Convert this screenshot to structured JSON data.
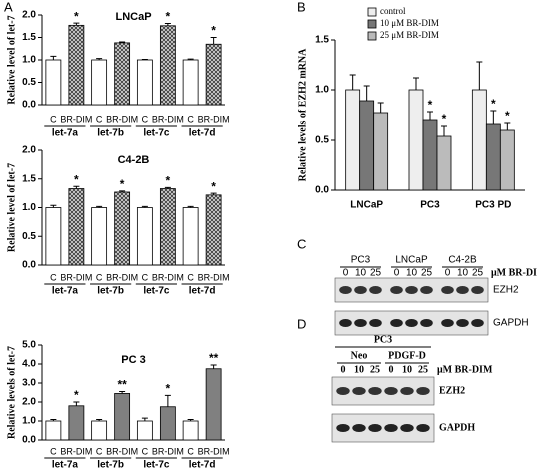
{
  "chart_data": [
    {
      "type": "bar",
      "panel": "A",
      "title": "LNCaP",
      "ylabel": "Relative level of let-7",
      "categories": [
        "let-7a",
        "let-7b",
        "let-7c",
        "let-7d"
      ],
      "series": [
        {
          "name": "C",
          "color": "#ffffff",
          "values": [
            1.0,
            1.0,
            1.0,
            1.0
          ],
          "errors": [
            0.08,
            0.03,
            0.01,
            0.02
          ],
          "annotations": [
            null,
            null,
            null,
            null
          ]
        },
        {
          "name": "BR-DIM",
          "color": "#999999",
          "pattern": "crosshatch",
          "values": [
            1.77,
            1.38,
            1.76,
            1.35
          ],
          "errors": [
            0.05,
            0.02,
            0.05,
            0.15
          ],
          "annotations": [
            "*",
            null,
            "*",
            "*"
          ]
        }
      ],
      "ylim": [
        0,
        2
      ],
      "yticks": [
        {
          "value": 0,
          "label": "0.0"
        },
        {
          "value": 0.5,
          "label": "0.5"
        },
        {
          "value": 1,
          "label": "1.0"
        },
        {
          "value": 1.5,
          "label": "1.5"
        },
        {
          "value": 2,
          "label": "2.0"
        }
      ]
    },
    {
      "type": "bar",
      "title": "C4-2B",
      "ylabel": "Relative level of let-7",
      "categories": [
        "let-7a",
        "let-7b",
        "let-7c",
        "let-7d"
      ],
      "series": [
        {
          "name": "C",
          "color": "#ffffff",
          "values": [
            1.0,
            1.0,
            1.0,
            1.0
          ],
          "errors": [
            0.04,
            0.02,
            0.02,
            0.02
          ],
          "annotations": [
            null,
            null,
            null,
            null
          ]
        },
        {
          "name": "BR-DIM",
          "color": "#999999",
          "pattern": "crosshatch",
          "values": [
            1.33,
            1.27,
            1.33,
            1.22
          ],
          "errors": [
            0.04,
            0.02,
            0.02,
            0.03
          ],
          "annotations": [
            "*",
            "*",
            "*",
            "*"
          ]
        }
      ],
      "ylim": [
        0,
        2
      ],
      "yticks": [
        {
          "value": 0,
          "label": "0.0"
        },
        {
          "value": 0.5,
          "label": "0.5"
        },
        {
          "value": 1,
          "label": "1.0"
        },
        {
          "value": 1.5,
          "label": "1.5"
        },
        {
          "value": 2,
          "label": "2.0"
        }
      ]
    },
    {
      "type": "bar",
      "title": "PC 3",
      "ylabel": "Relative levels of let-7",
      "categories": [
        "let-7a",
        "let-7b",
        "let-7c",
        "let-7d"
      ],
      "series": [
        {
          "name": "C",
          "color": "#ffffff",
          "values": [
            1.0,
            1.0,
            1.0,
            1.0
          ],
          "errors": [
            0.08,
            0.08,
            0.15,
            0.08
          ],
          "annotations": [
            null,
            null,
            null,
            null
          ]
        },
        {
          "name": "BR-DIM",
          "color": "#808080",
          "values": [
            1.8,
            2.45,
            1.75,
            3.75
          ],
          "errors": [
            0.2,
            0.1,
            0.6,
            0.2
          ],
          "annotations": [
            "*",
            "**",
            "*",
            "**"
          ]
        }
      ],
      "ylim": [
        0,
        5
      ],
      "yticks": [
        {
          "value": 0,
          "label": "0.0"
        },
        {
          "value": 1,
          "label": "1.0"
        },
        {
          "value": 2,
          "label": "2.0"
        },
        {
          "value": 3,
          "label": "3.0"
        },
        {
          "value": 4,
          "label": "4.0"
        },
        {
          "value": 5,
          "label": "5.0"
        }
      ]
    },
    {
      "type": "bar",
      "panel": "B",
      "ylabel": "Relative levels of EZH2 mRNA",
      "legend": "upper left",
      "categories": [
        "LNCaP",
        "PC3",
        "PC3 PD"
      ],
      "series": [
        {
          "name": "control",
          "color": "#eeeeee",
          "values": [
            1.0,
            1.0,
            1.0
          ],
          "errors": [
            0.15,
            0.12,
            0.28
          ],
          "annotations": [
            null,
            null,
            null
          ]
        },
        {
          "name": "10 μM BR-DIM",
          "color": "#777777",
          "values": [
            0.89,
            0.7,
            0.66
          ],
          "errors": [
            0.15,
            0.08,
            0.13
          ],
          "annotations": [
            null,
            "*",
            "*"
          ]
        },
        {
          "name": "25 μM BR-DIM",
          "color": "#bbbbbb",
          "values": [
            0.77,
            0.54,
            0.6
          ],
          "errors": [
            0.1,
            0.1,
            0.07
          ],
          "annotations": [
            null,
            "*",
            "*"
          ]
        }
      ],
      "ylim": [
        0,
        1.5
      ],
      "yticks": [
        {
          "value": 0,
          "label": "0.0"
        },
        {
          "value": 0.5,
          "label": "0.5"
        },
        {
          "value": 1,
          "label": "1.0"
        },
        {
          "value": 1.5,
          "label": "1.5"
        }
      ]
    }
  ],
  "blots": [
    {
      "panel": "C",
      "groups": [
        {
          "name": "PC3",
          "doses": [
            0,
            10,
            25
          ]
        },
        {
          "name": "LNCaP",
          "doses": [
            0,
            10,
            25
          ]
        },
        {
          "name": "C4-2B",
          "doses": [
            0,
            10,
            25
          ]
        }
      ],
      "unit": "μM BR-DIM",
      "rows": [
        "EZH2",
        "GAPDH"
      ]
    },
    {
      "panel": "D",
      "header": "PC3",
      "groups": [
        {
          "name": "Neo",
          "doses": [
            0,
            10,
            25
          ]
        },
        {
          "name": "PDGF-D",
          "doses": [
            0,
            10,
            25
          ]
        }
      ],
      "unit": "μM BR-DIM",
      "rows": [
        "EZH2",
        "GAPDH"
      ]
    }
  ]
}
